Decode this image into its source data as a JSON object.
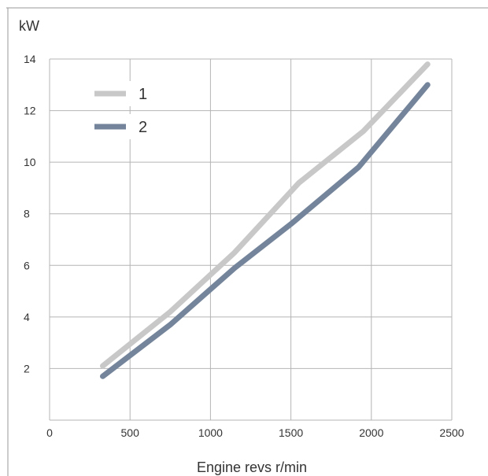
{
  "chart_data": {
    "type": "line",
    "xlabel": "Engine revs r/min",
    "ylabel": "kW",
    "xlim": [
      0,
      2500
    ],
    "ylim": [
      0,
      14
    ],
    "x_ticks": [
      0,
      500,
      1000,
      1500,
      2000,
      2500
    ],
    "y_ticks": [
      2,
      4,
      6,
      8,
      10,
      12,
      14
    ],
    "grid": true,
    "legend_position": "top-left",
    "series": [
      {
        "name": "1",
        "color": "#c8c8c8",
        "points": [
          [
            330,
            2.1
          ],
          [
            750,
            4.2
          ],
          [
            1150,
            6.5
          ],
          [
            1550,
            9.2
          ],
          [
            1950,
            11.2
          ],
          [
            2350,
            13.8
          ]
        ]
      },
      {
        "name": "2",
        "color": "#74849a",
        "points": [
          [
            330,
            1.7
          ],
          [
            750,
            3.7
          ],
          [
            1150,
            5.9
          ],
          [
            1500,
            7.6
          ],
          [
            1920,
            9.8
          ],
          [
            2350,
            13.0
          ]
        ]
      }
    ]
  }
}
